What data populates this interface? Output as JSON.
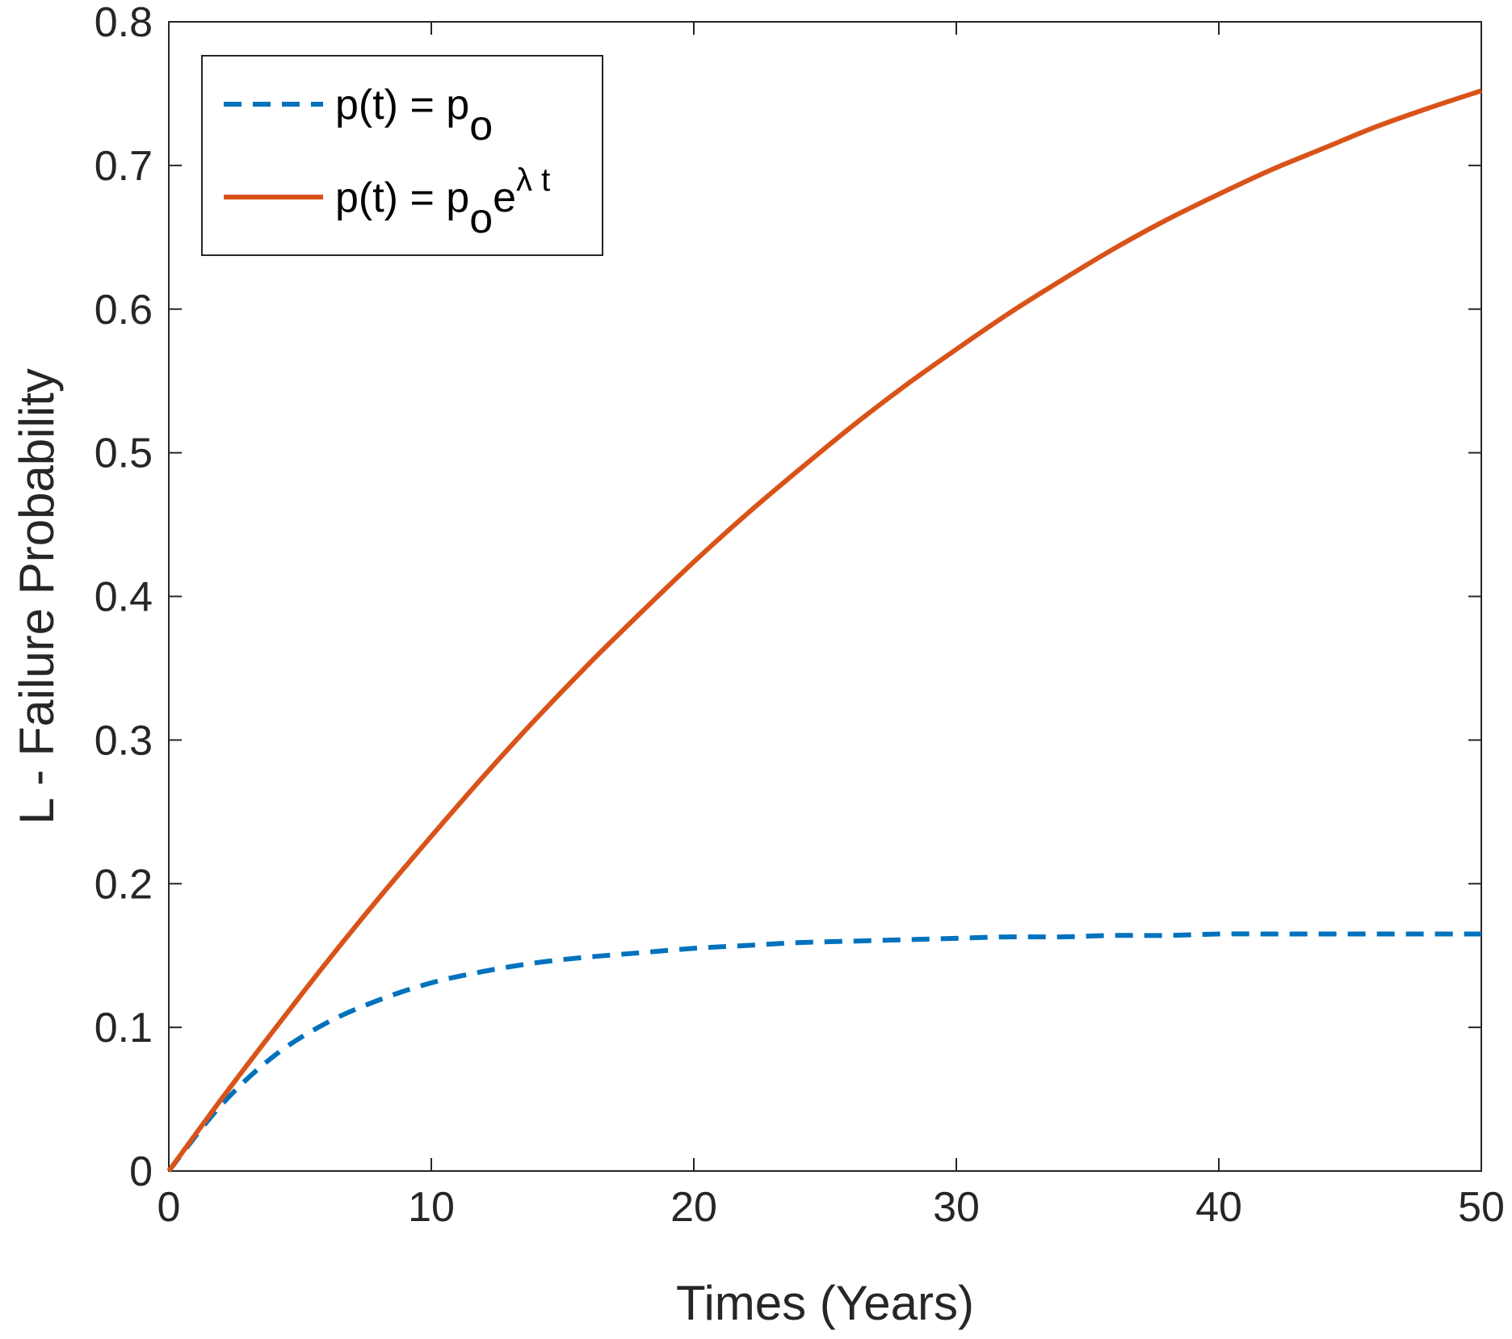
{
  "chart_data": {
    "type": "line",
    "xlabel": "Times (Years)",
    "ylabel": "L - Failure Probability",
    "xlim": [
      0,
      50
    ],
    "ylim": [
      0,
      0.8
    ],
    "xticks": [
      "0",
      "10",
      "20",
      "30",
      "40",
      "50"
    ],
    "yticks": [
      "0",
      "0.1",
      "0.2",
      "0.3",
      "0.4",
      "0.5",
      "0.6",
      "0.7",
      "0.8"
    ],
    "legend_placement": "top-left",
    "grid": false,
    "series": [
      {
        "name": "p(t) = p_o",
        "legend": {
          "base": "p(t) = p",
          "sub": "o",
          "sup": ""
        },
        "color": "#0072BD",
        "style": "dashed",
        "x": [
          0,
          2,
          4,
          6,
          8,
          10,
          12,
          14,
          16,
          18,
          20,
          22,
          24,
          26,
          28,
          30,
          32,
          34,
          36,
          38,
          40,
          42,
          44,
          46,
          48,
          50
        ],
        "y": [
          0,
          0.046,
          0.08,
          0.103,
          0.119,
          0.131,
          0.139,
          0.145,
          0.149,
          0.152,
          0.155,
          0.157,
          0.159,
          0.16,
          0.161,
          0.162,
          0.163,
          0.163,
          0.164,
          0.164,
          0.165,
          0.165,
          0.165,
          0.165,
          0.165,
          0.165
        ]
      },
      {
        "name": "p(t) = p_o e^{λ t}",
        "legend": {
          "base": "p(t) = p",
          "sub": "o",
          "mid": "e",
          "sup": "λ t"
        },
        "color": "#D95319",
        "style": "solid",
        "x": [
          0,
          2,
          4,
          6,
          8,
          10,
          12,
          14,
          16,
          18,
          20,
          22,
          24,
          26,
          28,
          30,
          32,
          34,
          36,
          38,
          40,
          42,
          44,
          46,
          48,
          50
        ],
        "y": [
          0,
          0.05,
          0.098,
          0.145,
          0.19,
          0.233,
          0.275,
          0.315,
          0.353,
          0.389,
          0.424,
          0.457,
          0.488,
          0.518,
          0.546,
          0.572,
          0.597,
          0.62,
          0.642,
          0.662,
          0.68,
          0.697,
          0.712,
          0.727,
          0.74,
          0.752
        ]
      }
    ]
  }
}
